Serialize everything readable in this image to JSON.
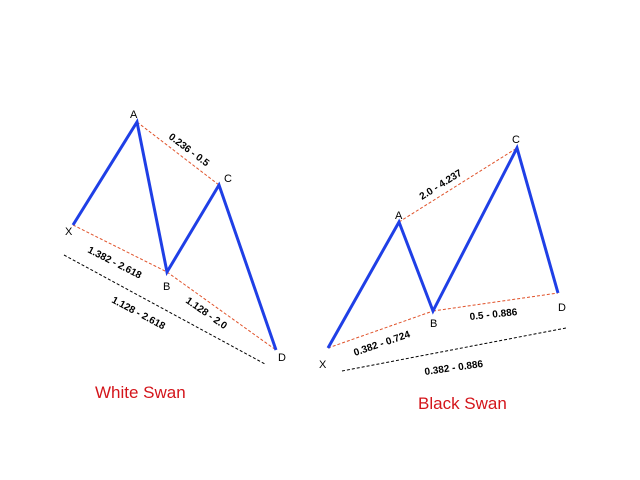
{
  "white_swan": {
    "title": "White Swan",
    "points": {
      "x": "X",
      "a": "A",
      "b": "B",
      "c": "C",
      "d": "D"
    },
    "ratios": {
      "ac": "0.236 - 0.5",
      "xb": "1.382 - 2.618",
      "bd": "1.128 - 2.0",
      "xd": "1.128 - 2.618"
    }
  },
  "black_swan": {
    "title": "Black Swan",
    "points": {
      "x": "X",
      "a": "A",
      "b": "B",
      "c": "C",
      "d": "D"
    },
    "ratios": {
      "ac": "2.0 - 4.237",
      "xb": "0.382 - 0.724",
      "bd": "0.5 - 0.886",
      "xd": "0.382 - 0.886"
    }
  },
  "colors": {
    "leg": "#1f3fe6",
    "ratio_line": "#e0522a",
    "projection_line": "#000000",
    "title": "#d4151b"
  }
}
